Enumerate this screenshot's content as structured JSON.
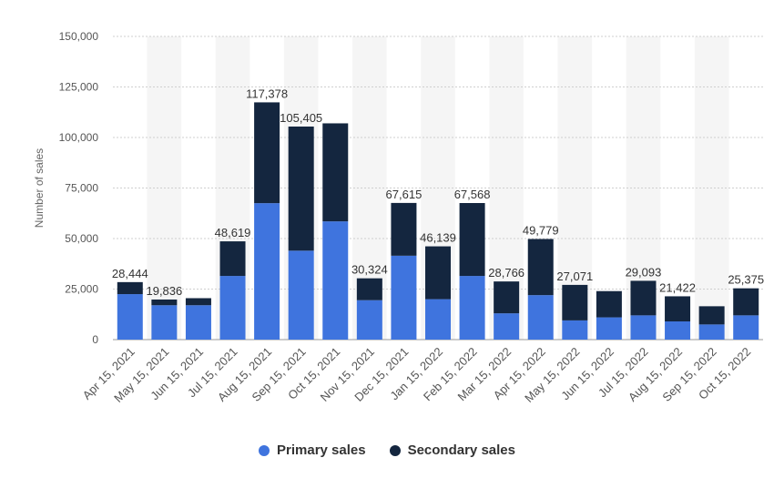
{
  "chart_data": {
    "type": "bar",
    "stacked": true,
    "ylabel": "Number of sales",
    "ylim": [
      0,
      150000
    ],
    "yticks": [
      0,
      25000,
      50000,
      75000,
      100000,
      125000,
      150000
    ],
    "ytick_labels": [
      "0",
      "25,000",
      "50,000",
      "75,000",
      "100,000",
      "125,000",
      "150,000"
    ],
    "grid": true,
    "legend_position": "bottom",
    "categories": [
      "Apr 15, 2021",
      "May 15, 2021",
      "Jun 15, 2021",
      "Jul 15, 2021",
      "Aug 15, 2021",
      "Sep 15, 2021",
      "Oct 15, 2021",
      "Nov 15, 2021",
      "Dec 15, 2021",
      "Jan 15, 2022",
      "Feb 15, 2022",
      "Mar 15, 2022",
      "Apr 15, 2022",
      "May 15, 2022",
      "Jun 15, 2022",
      "Jul 15, 2022",
      "Aug 15, 2022",
      "Sep 15, 2022",
      "Oct 15, 2022"
    ],
    "series": [
      {
        "name": "Primary sales",
        "color": "#3f74de",
        "values": [
          22500,
          17000,
          17000,
          31500,
          67500,
          44000,
          58500,
          19500,
          41500,
          20000,
          31500,
          13000,
          22000,
          9500,
          11000,
          12000,
          9000,
          7500,
          12000
        ]
      },
      {
        "name": "Secondary sales",
        "color": "#14263f",
        "values": [
          5944,
          2836,
          3500,
          17119,
          49878,
          61405,
          48500,
          10824,
          26115,
          26139,
          36068,
          15766,
          27779,
          17571,
          13000,
          17093,
          12422,
          9000,
          13375
        ]
      }
    ],
    "total_labels": [
      "28,444",
      "19,836",
      "",
      "48,619",
      "117,378",
      "105,405",
      "",
      "30,324",
      "67,615",
      "46,139",
      "67,568",
      "28,766",
      "49,779",
      "27,071",
      "",
      "29,093",
      "21,422",
      "",
      "25,375"
    ]
  }
}
